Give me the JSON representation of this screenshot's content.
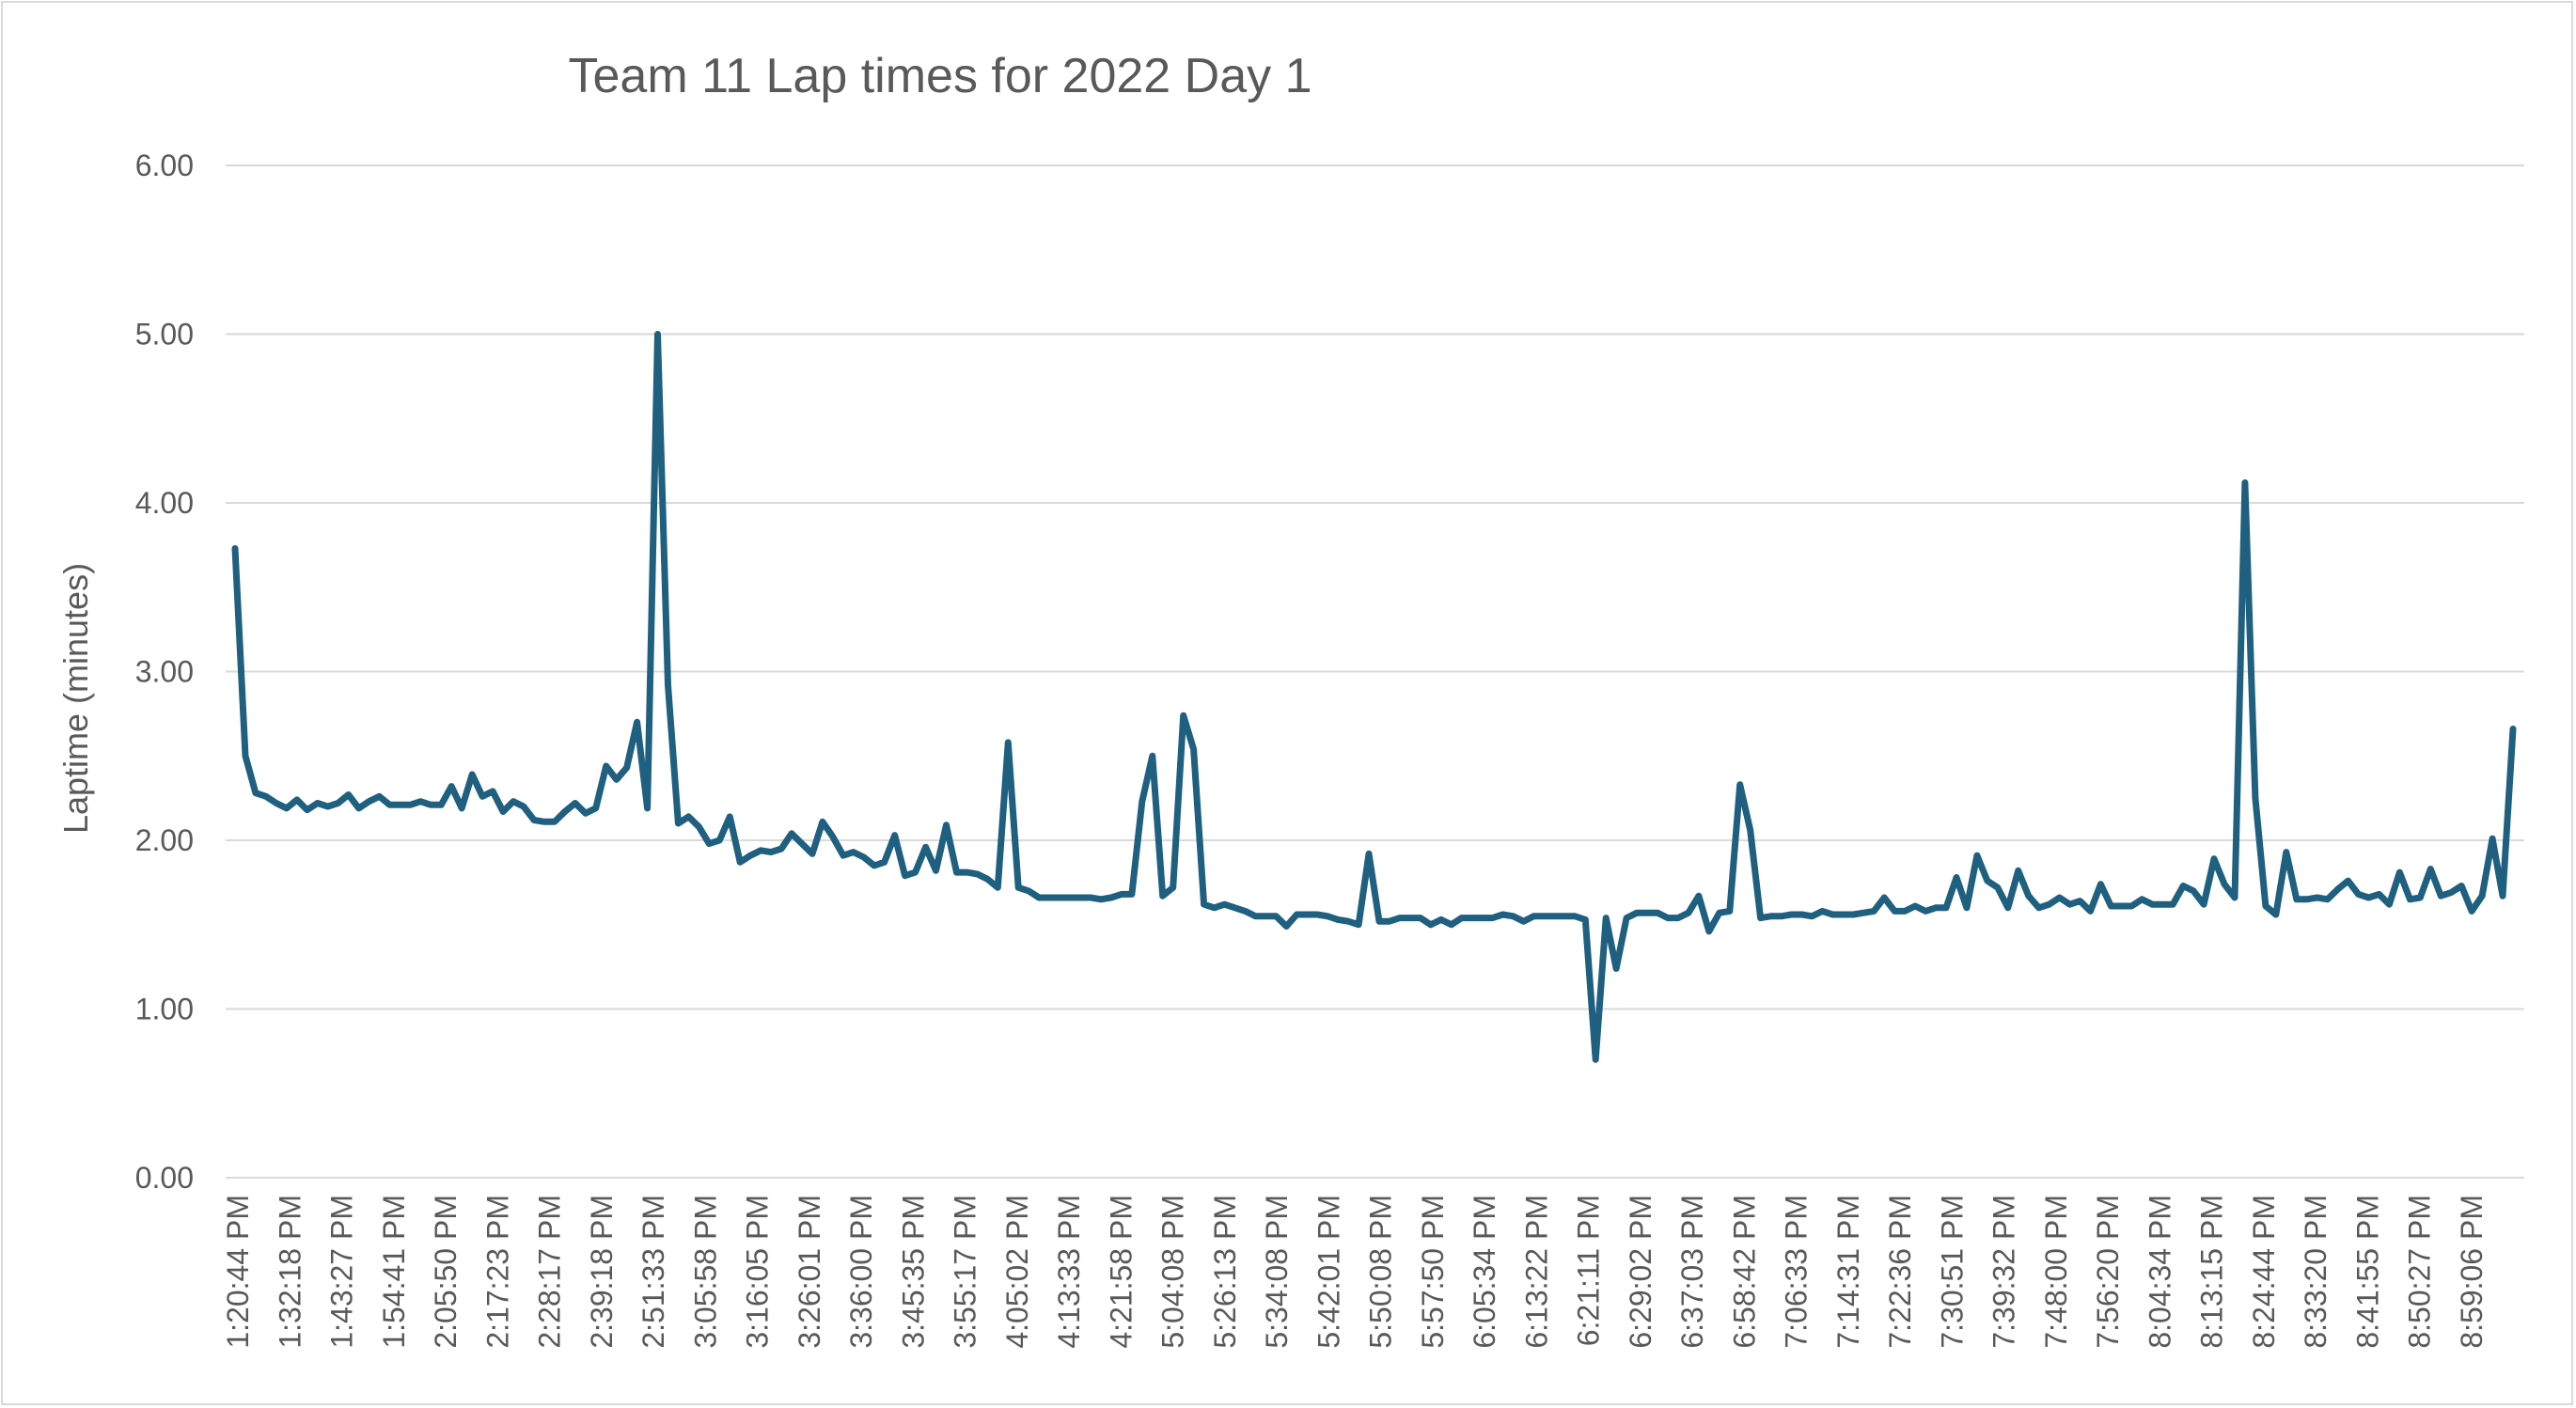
{
  "chart_data": {
    "type": "line",
    "title": "Team 11 Lap times for 2022 Day 1",
    "xlabel": "",
    "ylabel": "Laptime  (minutes)",
    "ylim": [
      0,
      6
    ],
    "yticks": [
      "0.00",
      "1.00",
      "2.00",
      "3.00",
      "4.00",
      "5.00",
      "6.00"
    ],
    "grid": true,
    "legend": "none",
    "series_color": "#1f5f7f",
    "xticks": [
      "1:20:44 PM",
      "1:32:18 PM",
      "1:43:27 PM",
      "1:54:41 PM",
      "2:05:50 PM",
      "2:17:23 PM",
      "2:28:17 PM",
      "2:39:18 PM",
      "2:51:33 PM",
      "3:05:58 PM",
      "3:16:05 PM",
      "3:26:01 PM",
      "3:36:00 PM",
      "3:45:35 PM",
      "3:55:17 PM",
      "4:05:02 PM",
      "4:13:33 PM",
      "4:21:58 PM",
      "5:04:08 PM",
      "5:26:13 PM",
      "5:34:08 PM",
      "5:42:01 PM",
      "5:50:08 PM",
      "5:57:50 PM",
      "6:05:34 PM",
      "6:13:22 PM",
      "6:21:11 PM",
      "6:29:02 PM",
      "6:37:03 PM",
      "6:58:42 PM",
      "7:06:33 PM",
      "7:14:31 PM",
      "7:22:36 PM",
      "7:30:51 PM",
      "7:39:32 PM",
      "7:48:00 PM",
      "7:56:20 PM",
      "8:04:34 PM",
      "8:13:15 PM",
      "8:24:44 PM",
      "8:33:20 PM",
      "8:41:55 PM",
      "8:50:27 PM",
      "8:59:06 PM"
    ],
    "values": [
      3.73,
      2.5,
      2.28,
      2.26,
      2.22,
      2.19,
      2.24,
      2.18,
      2.22,
      2.2,
      2.22,
      2.27,
      2.19,
      2.23,
      2.26,
      2.21,
      2.21,
      2.21,
      2.23,
      2.21,
      2.21,
      2.32,
      2.19,
      2.39,
      2.26,
      2.29,
      2.17,
      2.23,
      2.2,
      2.12,
      2.11,
      2.11,
      2.17,
      2.22,
      2.16,
      2.19,
      2.44,
      2.36,
      2.43,
      2.7,
      2.19,
      5.0,
      2.92,
      2.1,
      2.14,
      2.08,
      1.98,
      2.0,
      2.14,
      1.87,
      1.91,
      1.94,
      1.93,
      1.95,
      2.04,
      1.98,
      1.92,
      2.11,
      2.02,
      1.91,
      1.93,
      1.9,
      1.85,
      1.87,
      2.03,
      1.79,
      1.81,
      1.96,
      1.82,
      2.09,
      1.81,
      1.81,
      1.8,
      1.77,
      1.72,
      2.58,
      1.72,
      1.7,
      1.66,
      1.66,
      1.66,
      1.66,
      1.66,
      1.66,
      1.65,
      1.66,
      1.68,
      1.68,
      2.23,
      2.5,
      1.67,
      1.72,
      2.74,
      2.54,
      1.62,
      1.6,
      1.62,
      1.6,
      1.58,
      1.55,
      1.55,
      1.55,
      1.49,
      1.56,
      1.56,
      1.56,
      1.55,
      1.53,
      1.52,
      1.5,
      1.92,
      1.52,
      1.52,
      1.54,
      1.54,
      1.54,
      1.5,
      1.53,
      1.5,
      1.54,
      1.54,
      1.54,
      1.54,
      1.56,
      1.55,
      1.52,
      1.55,
      1.55,
      1.55,
      1.55,
      1.55,
      1.53,
      0.7,
      1.54,
      1.24,
      1.54,
      1.57,
      1.57,
      1.57,
      1.54,
      1.54,
      1.57,
      1.67,
      1.46,
      1.57,
      1.58,
      2.33,
      2.06,
      1.54,
      1.55,
      1.55,
      1.56,
      1.56,
      1.55,
      1.58,
      1.56,
      1.56,
      1.56,
      1.57,
      1.58,
      1.66,
      1.58,
      1.58,
      1.61,
      1.58,
      1.6,
      1.6,
      1.78,
      1.6,
      1.91,
      1.76,
      1.72,
      1.6,
      1.82,
      1.67,
      1.6,
      1.62,
      1.66,
      1.62,
      1.64,
      1.58,
      1.74,
      1.61,
      1.61,
      1.61,
      1.65,
      1.62,
      1.62,
      1.62,
      1.73,
      1.7,
      1.62,
      1.89,
      1.74,
      1.66,
      4.12,
      2.25,
      1.61,
      1.56,
      1.93,
      1.65,
      1.65,
      1.66,
      1.65,
      1.71,
      1.76,
      1.68,
      1.66,
      1.68,
      1.62,
      1.81,
      1.65,
      1.66,
      1.83,
      1.67,
      1.69,
      1.73,
      1.58,
      1.67,
      2.01,
      1.67,
      2.66
    ]
  }
}
